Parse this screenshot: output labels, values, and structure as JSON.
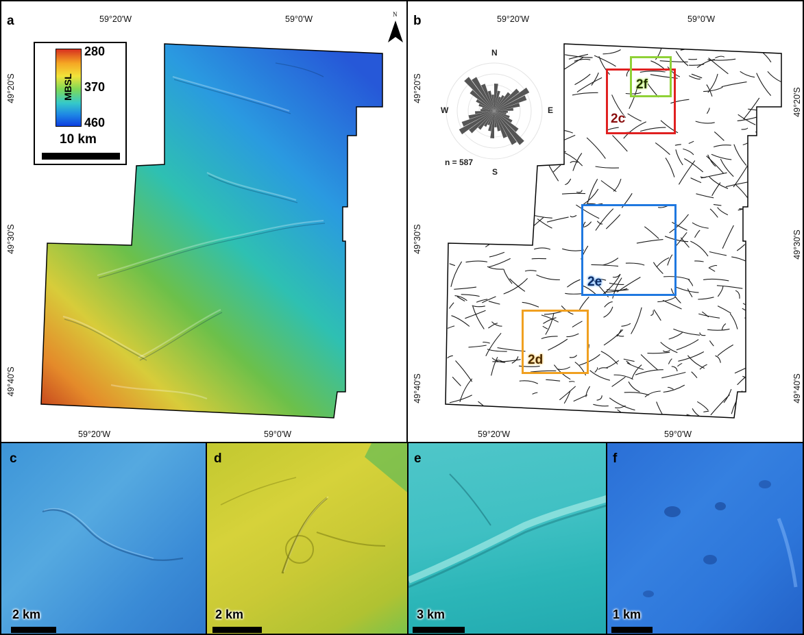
{
  "panels": {
    "a": "a",
    "b": "b",
    "c": "c",
    "d": "d",
    "e": "e",
    "f": "f"
  },
  "panel_a": {
    "top_lon": [
      "59°20'W",
      "59°0'W"
    ],
    "bottom_lon": [
      "59°20'W",
      "59°0'W"
    ],
    "left_lat": [
      "49°20'S",
      "49°30'S",
      "49°40'S"
    ],
    "north_symbol": "N",
    "legend": {
      "unit": "MBSL",
      "ticks": [
        "280",
        "370",
        "460"
      ],
      "scale_label": "10 km",
      "colors": [
        "#d7301f",
        "#f5a623",
        "#f2e33a",
        "#7ed957",
        "#35c9c9",
        "#1e88e5",
        "#0d3fe0"
      ]
    }
  },
  "panel_b": {
    "top_lon": [
      "59°20'W",
      "59°0'W"
    ],
    "bottom_lon": [
      "59°20'W",
      "59°0'W"
    ],
    "left_lat": [
      "49°20'S",
      "49°30'S",
      "49°40'S"
    ],
    "right_lat": [
      "49°20'S",
      "49°30'S",
      "49°40'S"
    ],
    "rose": {
      "n": "N",
      "s": "S",
      "e": "E",
      "w": "W",
      "count": "n = 587"
    },
    "boxes": [
      {
        "label": "2c",
        "color": "#e02020"
      },
      {
        "label": "2f",
        "color": "#8fd136"
      },
      {
        "label": "2e",
        "color": "#1f78e0"
      },
      {
        "label": "2d",
        "color": "#f0a020"
      }
    ]
  },
  "insets": {
    "c": {
      "scale_label": "2 km"
    },
    "d": {
      "scale_label": "2 km"
    },
    "e": {
      "scale_label": "3 km"
    },
    "f": {
      "scale_label": "1 km"
    }
  }
}
